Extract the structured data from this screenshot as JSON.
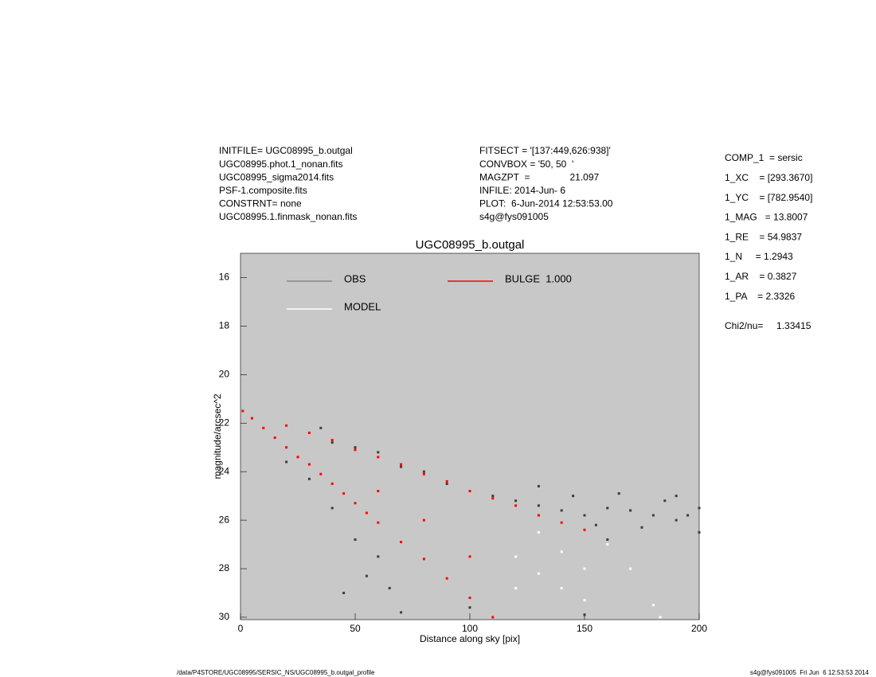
{
  "info_left": [
    "INITFILE= UGC08995_b.outgal",
    "UGC08995.phot.1_nonan.fits",
    "UGC08995_sigma2014.fits",
    "PSF-1.composite.fits",
    "CONSTRNT= none",
    "UGC08995.1.finmask_nonan.fits"
  ],
  "info_middle": [
    "FITSECT = '[137:449,626:938]'",
    "CONVBOX = '50, 50  '",
    "MAGZPT  =               21.097",
    "INFILE: 2014-Jun- 6",
    "PLOT:  6-Jun-2014 12:53:53.00",
    "s4g@fys091005"
  ],
  "parameters": [
    "COMP_1  = sersic",
    "1_XC    = [293.3670]",
    "1_YC    = [782.9540]",
    "1_MAG   = 13.8007",
    "1_RE    = 54.9837",
    "1_N     = 1.2943",
    "1_AR    = 0.3827",
    "1_PA    = 2.3326"
  ],
  "chi2": "Chi2/nu=     1.33415",
  "footer_left": "/data/P4STORE/UGC08995/SERSIC_NS/UGC08995_b.outgal_profile",
  "footer_right": "s4g@fys091005  Fri Jun  6 12:53:53 2014",
  "chart_data": {
    "type": "scatter",
    "title": "UGC08995_b.outgal",
    "x_label": "Distance along sky [pix]",
    "y_label": "magnitude/arcsec^2",
    "xlim": [
      0,
      200
    ],
    "xticks": [
      0,
      50,
      100,
      150,
      200
    ],
    "ylim": [
      15,
      30.1
    ],
    "yticks": [
      16,
      18,
      20,
      22,
      24,
      26,
      28,
      30
    ],
    "y_inverted": true,
    "background": "#c8c8c8",
    "series": [
      {
        "name": "OBS",
        "color": "#888888",
        "point_color": "#3c3c3c",
        "x": [
          35,
          40,
          50,
          60,
          70,
          80,
          90,
          100,
          110,
          120,
          130,
          140,
          150,
          160,
          170,
          180,
          190,
          200,
          155,
          145,
          165,
          175,
          185,
          195,
          130,
          20,
          30,
          40,
          50,
          55,
          60,
          70,
          45,
          65,
          100,
          150,
          190,
          160,
          200
        ],
        "values": [
          22.2,
          22.8,
          23.0,
          23.2,
          23.8,
          24.0,
          24.5,
          24.8,
          25.0,
          25.2,
          25.4,
          25.6,
          25.8,
          25.5,
          25.6,
          25.8,
          26.0,
          26.5,
          26.2,
          25.0,
          24.9,
          26.3,
          25.2,
          25.8,
          24.6,
          23.6,
          24.3,
          25.5,
          26.8,
          28.3,
          27.5,
          29.8,
          29.0,
          28.8,
          29.6,
          29.9,
          25.0,
          26.8,
          25.5
        ]
      },
      {
        "name": "MODEL",
        "color": "#ffffff",
        "point_color": "#ffffff",
        "x": [
          120,
          130,
          140,
          150,
          160,
          170,
          180,
          183,
          120,
          140,
          130,
          150
        ],
        "values": [
          27.5,
          28.2,
          28.8,
          29.3,
          27.0,
          28.0,
          29.5,
          30.0,
          28.8,
          27.3,
          26.5,
          28.0
        ]
      },
      {
        "name": "BULGE  1.000",
        "color": "#ff0000",
        "point_color": "#ff0000",
        "x": [
          1,
          5,
          10,
          15,
          20,
          25,
          30,
          35,
          40,
          45,
          50,
          55,
          60,
          70,
          80,
          90,
          100,
          110,
          20,
          30,
          40,
          50,
          60,
          70,
          80,
          90,
          100,
          110,
          120,
          130,
          140,
          150,
          60,
          80,
          100
        ],
        "values": [
          21.5,
          21.8,
          22.2,
          22.6,
          23.0,
          23.4,
          23.7,
          24.1,
          24.5,
          24.9,
          25.3,
          25.7,
          26.1,
          26.9,
          27.6,
          28.4,
          29.2,
          30.0,
          22.1,
          22.4,
          22.7,
          23.1,
          23.4,
          23.7,
          24.1,
          24.4,
          24.8,
          25.1,
          25.4,
          25.8,
          26.1,
          26.4,
          24.8,
          26.0,
          27.5
        ]
      }
    ]
  }
}
